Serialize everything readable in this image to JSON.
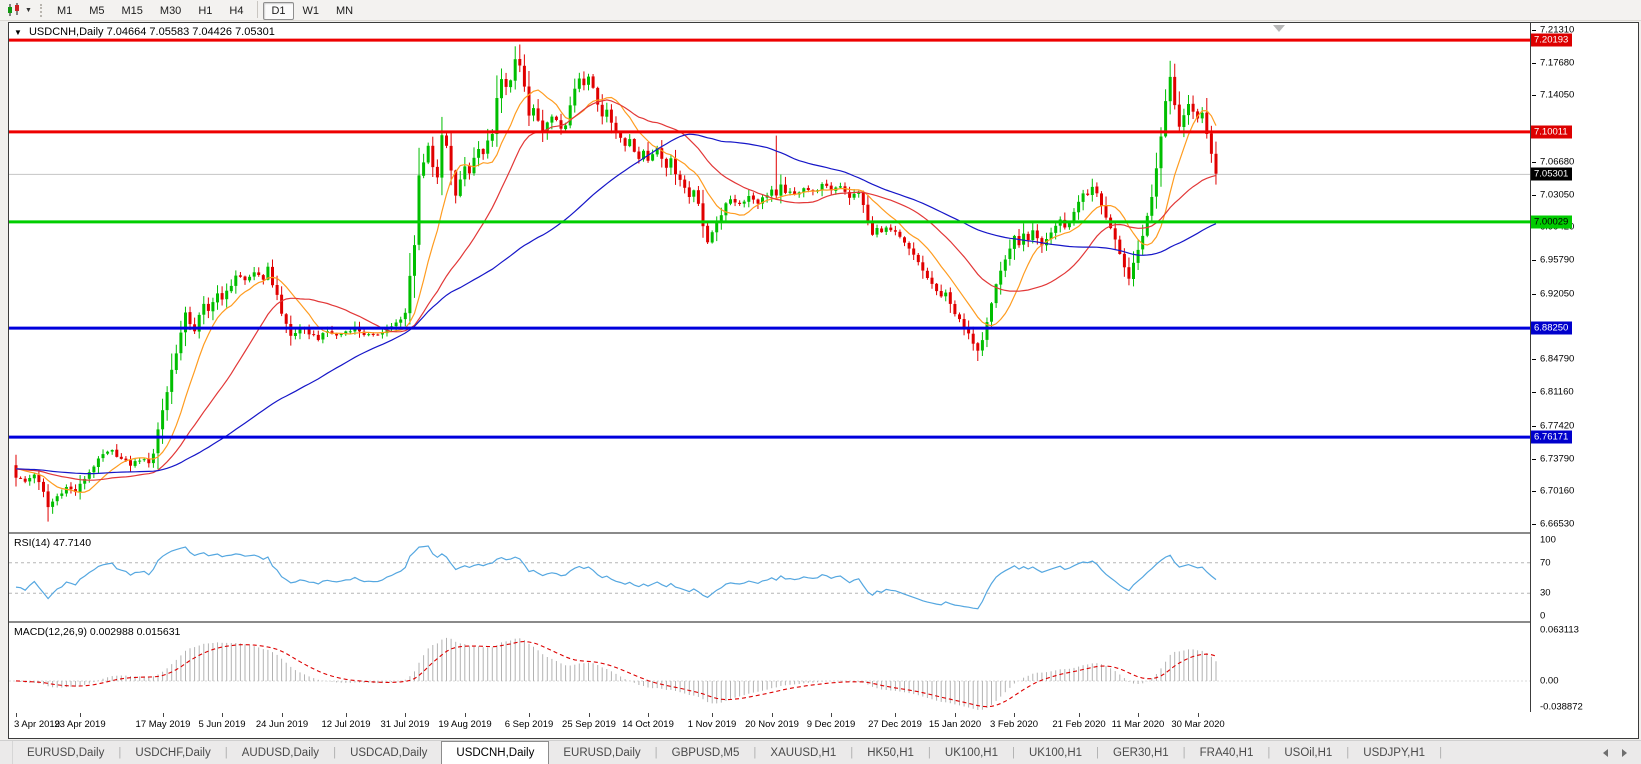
{
  "toolbar": {
    "timeframes": [
      "M1",
      "M5",
      "M15",
      "M30",
      "H1",
      "H4",
      "D1",
      "W1",
      "MN"
    ],
    "active_timeframe": "D1",
    "chart_tool_icon": "candlestick-chart-icon"
  },
  "chart": {
    "header": {
      "symbol": "USDCNH,Daily",
      "ohlc": "7.04664 7.05583 7.04426 7.05301",
      "open": "7.04664",
      "high": "7.05583",
      "low": "7.04426",
      "close": "7.05301"
    },
    "price_axis": {
      "ticks": [
        "7.21310",
        "7.17680",
        "7.14050",
        "7.06680",
        "7.03050",
        "6.99420",
        "6.95790",
        "6.92050",
        "6.84790",
        "6.81160",
        "6.77420",
        "6.73790",
        "6.70160",
        "6.66530"
      ],
      "badges": [
        {
          "value": "7.20193",
          "price": 7.20193,
          "bg": "#dd0000",
          "fg": "#ffffff"
        },
        {
          "value": "7.10011",
          "price": 7.10011,
          "bg": "#dd0000",
          "fg": "#ffffff"
        },
        {
          "value": "7.05301",
          "price": 7.05301,
          "bg": "#000000",
          "fg": "#ffffff"
        },
        {
          "value": "7.00029",
          "price": 7.00029,
          "bg": "#00cc00",
          "fg": "#000000"
        },
        {
          "value": "6.88250",
          "price": 6.8825,
          "bg": "#0000cc",
          "fg": "#ffffff"
        },
        {
          "value": "6.76171",
          "price": 6.76171,
          "bg": "#0000cc",
          "fg": "#ffffff"
        }
      ]
    },
    "hlines": [
      {
        "price": 7.20193,
        "color": "#ee0000",
        "width": 3
      },
      {
        "price": 7.10011,
        "color": "#ee0000",
        "width": 3
      },
      {
        "price": 7.05301,
        "color": "#c4c4c4",
        "width": 1
      },
      {
        "price": 7.00029,
        "color": "#00ce00",
        "width": 3
      },
      {
        "price": 6.8825,
        "color": "#0000dd",
        "width": 3
      },
      {
        "price": 6.76171,
        "color": "#0000dd",
        "width": 3
      }
    ]
  },
  "chart_data": {
    "type": "candlestick",
    "symbol": "USDCNH",
    "timeframe": "Daily",
    "price_range": [
      6.6653,
      7.2131
    ],
    "num_candles": 263,
    "candle_up_color": "#00be00",
    "candle_down_color": "#e00000",
    "moving_averages": [
      {
        "name": "ma-fast",
        "period": 10,
        "color": "#ff9c20"
      },
      {
        "name": "ma-mid",
        "period": 25,
        "color": "#e23838"
      },
      {
        "name": "ma-slow",
        "period": 60,
        "color": "#1616c8"
      }
    ],
    "close_anchors": [
      [
        0,
        6.718
      ],
      [
        2,
        6.712
      ],
      [
        4,
        6.721
      ],
      [
        6,
        6.7
      ],
      [
        7,
        6.684
      ],
      [
        9,
        6.696
      ],
      [
        11,
        6.706
      ],
      [
        13,
        6.701
      ],
      [
        15,
        6.716
      ],
      [
        17,
        6.73
      ],
      [
        19,
        6.742
      ],
      [
        21,
        6.746
      ],
      [
        23,
        6.737
      ],
      [
        25,
        6.731
      ],
      [
        27,
        6.737
      ],
      [
        29,
        6.734
      ],
      [
        30,
        6.744
      ],
      [
        31,
        6.77
      ],
      [
        32,
        6.792
      ],
      [
        33,
        6.812
      ],
      [
        34,
        6.836
      ],
      [
        35,
        6.856
      ],
      [
        36,
        6.877
      ],
      [
        37,
        6.898
      ],
      [
        38,
        6.888
      ],
      [
        39,
        6.88
      ],
      [
        40,
        6.896
      ],
      [
        41,
        6.908
      ],
      [
        42,
        6.901
      ],
      [
        43,
        6.913
      ],
      [
        44,
        6.921
      ],
      [
        45,
        6.913
      ],
      [
        46,
        6.923
      ],
      [
        47,
        6.931
      ],
      [
        48,
        6.941
      ],
      [
        50,
        6.934
      ],
      [
        52,
        6.945
      ],
      [
        54,
        6.938
      ],
      [
        55,
        6.949
      ],
      [
        56,
        6.931
      ],
      [
        57,
        6.92
      ],
      [
        58,
        6.898
      ],
      [
        59,
        6.887
      ],
      [
        60,
        6.874
      ],
      [
        62,
        6.882
      ],
      [
        64,
        6.877
      ],
      [
        66,
        6.871
      ],
      [
        68,
        6.879
      ],
      [
        70,
        6.874
      ],
      [
        72,
        6.879
      ],
      [
        74,
        6.883
      ],
      [
        76,
        6.876
      ],
      [
        78,
        6.873
      ],
      [
        80,
        6.879
      ],
      [
        82,
        6.885
      ],
      [
        84,
        6.891
      ],
      [
        85,
        6.899
      ],
      [
        86,
        6.94
      ],
      [
        87,
        6.976
      ],
      [
        88,
        7.052
      ],
      [
        89,
        7.066
      ],
      [
        90,
        7.086
      ],
      [
        91,
        7.062
      ],
      [
        92,
        7.048
      ],
      [
        93,
        7.096
      ],
      [
        94,
        7.084
      ],
      [
        95,
        7.056
      ],
      [
        96,
        7.03
      ],
      [
        97,
        7.046
      ],
      [
        98,
        7.062
      ],
      [
        99,
        7.055
      ],
      [
        100,
        7.071
      ],
      [
        101,
        7.083
      ],
      [
        102,
        7.076
      ],
      [
        103,
        7.089
      ],
      [
        104,
        7.099
      ],
      [
        105,
        7.136
      ],
      [
        106,
        7.158
      ],
      [
        107,
        7.149
      ],
      [
        108,
        7.159
      ],
      [
        109,
        7.18
      ],
      [
        110,
        7.172
      ],
      [
        111,
        7.15
      ],
      [
        112,
        7.118
      ],
      [
        113,
        7.126
      ],
      [
        114,
        7.112
      ],
      [
        115,
        7.098
      ],
      [
        116,
        7.109
      ],
      [
        117,
        7.119
      ],
      [
        118,
        7.112
      ],
      [
        119,
        7.102
      ],
      [
        120,
        7.108
      ],
      [
        121,
        7.131
      ],
      [
        122,
        7.146
      ],
      [
        123,
        7.159
      ],
      [
        124,
        7.151
      ],
      [
        125,
        7.161
      ],
      [
        126,
        7.148
      ],
      [
        127,
        7.13
      ],
      [
        128,
        7.118
      ],
      [
        129,
        7.126
      ],
      [
        130,
        7.112
      ],
      [
        131,
        7.1
      ],
      [
        132,
        7.092
      ],
      [
        133,
        7.085
      ],
      [
        134,
        7.093
      ],
      [
        135,
        7.08
      ],
      [
        136,
        7.072
      ],
      [
        137,
        7.079
      ],
      [
        138,
        7.068
      ],
      [
        139,
        7.076
      ],
      [
        140,
        7.083
      ],
      [
        141,
        7.072
      ],
      [
        142,
        7.062
      ],
      [
        143,
        7.069
      ],
      [
        144,
        7.055
      ],
      [
        145,
        7.048
      ],
      [
        146,
        7.038
      ],
      [
        147,
        7.028
      ],
      [
        148,
        7.036
      ],
      [
        149,
        7.022
      ],
      [
        150,
        6.996
      ],
      [
        151,
        6.976
      ],
      [
        152,
        6.989
      ],
      [
        153,
        7.001
      ],
      [
        154,
        7.009
      ],
      [
        155,
        7.019
      ],
      [
        156,
        7.026
      ],
      [
        158,
        7.02
      ],
      [
        160,
        7.029
      ],
      [
        162,
        7.022
      ],
      [
        164,
        7.031
      ],
      [
        165,
        7.036
      ],
      [
        166,
        7.028
      ],
      [
        167,
        7.04
      ],
      [
        168,
        7.034
      ],
      [
        170,
        7.03
      ],
      [
        172,
        7.039
      ],
      [
        174,
        7.033
      ],
      [
        176,
        7.041
      ],
      [
        178,
        7.036
      ],
      [
        180,
        7.041
      ],
      [
        182,
        7.028
      ],
      [
        184,
        7.033
      ],
      [
        185,
        7.02
      ],
      [
        186,
        6.998
      ],
      [
        187,
        6.986
      ],
      [
        188,
        6.993
      ],
      [
        189,
        6.988
      ],
      [
        190,
        6.996
      ],
      [
        191,
        6.99
      ],
      [
        192,
        6.989
      ],
      [
        193,
        6.982
      ],
      [
        194,
        6.976
      ],
      [
        196,
        6.963
      ],
      [
        198,
        6.946
      ],
      [
        200,
        6.931
      ],
      [
        202,
        6.916
      ],
      [
        203,
        6.921
      ],
      [
        204,
        6.911
      ],
      [
        205,
        6.899
      ],
      [
        206,
        6.891
      ],
      [
        207,
        6.883
      ],
      [
        208,
        6.875
      ],
      [
        209,
        6.867
      ],
      [
        210,
        6.859
      ],
      [
        211,
        6.871
      ],
      [
        212,
        6.891
      ],
      [
        213,
        6.911
      ],
      [
        214,
        6.931
      ],
      [
        215,
        6.946
      ],
      [
        216,
        6.959
      ],
      [
        217,
        6.971
      ],
      [
        218,
        6.983
      ],
      [
        219,
        6.976
      ],
      [
        220,
        6.986
      ],
      [
        221,
        6.979
      ],
      [
        222,
        6.989
      ],
      [
        223,
        6.981
      ],
      [
        224,
        6.973
      ],
      [
        225,
        6.981
      ],
      [
        226,
        6.989
      ],
      [
        227,
        6.996
      ],
      [
        228,
        7.003
      ],
      [
        229,
        6.993
      ],
      [
        230,
        7.001
      ],
      [
        231,
        7.011
      ],
      [
        232,
        7.023
      ],
      [
        233,
        7.033
      ],
      [
        234,
        7.029
      ],
      [
        235,
        7.039
      ],
      [
        236,
        7.031
      ],
      [
        237,
        7.019
      ],
      [
        238,
        7.006
      ],
      [
        239,
        6.993
      ],
      [
        240,
        6.979
      ],
      [
        241,
        6.963
      ],
      [
        242,
        6.949
      ],
      [
        243,
        6.939
      ],
      [
        244,
        6.953
      ],
      [
        245,
        6.969
      ],
      [
        246,
        6.986
      ],
      [
        247,
        7.006
      ],
      [
        248,
        7.029
      ],
      [
        249,
        7.061
      ],
      [
        250,
        7.096
      ],
      [
        251,
        7.136
      ],
      [
        252,
        7.161
      ],
      [
        253,
        7.131
      ],
      [
        254,
        7.106
      ],
      [
        255,
        7.119
      ],
      [
        256,
        7.133
      ],
      [
        257,
        7.123
      ],
      [
        258,
        7.113
      ],
      [
        259,
        7.121
      ],
      [
        260,
        7.099
      ],
      [
        261,
        7.076
      ],
      [
        262,
        7.053
      ]
    ],
    "extra_wicks": [
      {
        "day": 7,
        "low": 6.668
      },
      {
        "day": 88,
        "low": 6.982
      },
      {
        "day": 110,
        "high": 7.197
      },
      {
        "day": 166,
        "high": 7.096
      },
      {
        "day": 210,
        "low": 6.846
      },
      {
        "day": 252,
        "high": 7.179
      }
    ],
    "date_labels": [
      {
        "label": "3 Apr 2019",
        "day": 0
      },
      {
        "label": "23 Apr 2019",
        "day": 14
      },
      {
        "label": "17 May 2019",
        "day": 32
      },
      {
        "label": "5 Jun 2019",
        "day": 45
      },
      {
        "label": "24 Jun 2019",
        "day": 58
      },
      {
        "label": "12 Jul 2019",
        "day": 72
      },
      {
        "label": "31 Jul 2019",
        "day": 85
      },
      {
        "label": "19 Aug 2019",
        "day": 98
      },
      {
        "label": "6 Sep 2019",
        "day": 112
      },
      {
        "label": "25 Sep 2019",
        "day": 125
      },
      {
        "label": "14 Oct 2019",
        "day": 138
      },
      {
        "label": "1 Nov 2019",
        "day": 152
      },
      {
        "label": "20 Nov 2019",
        "day": 165
      },
      {
        "label": "9 Dec 2019",
        "day": 178
      },
      {
        "label": "27 Dec 2019",
        "day": 192
      },
      {
        "label": "15 Jan 2020",
        "day": 205
      },
      {
        "label": "3 Feb 2020",
        "day": 218
      },
      {
        "label": "21 Feb 2020",
        "day": 232
      },
      {
        "label": "11 Mar 2020",
        "day": 245
      },
      {
        "label": "30 Mar 2020",
        "day": 258
      }
    ]
  },
  "rsi": {
    "title": "RSI(14)",
    "value": "47.7140",
    "period": 14,
    "levels": [
      100,
      70,
      30,
      0
    ],
    "line_color": "#55a7e0"
  },
  "macd": {
    "title": "MACD(12,26,9)",
    "values": "0.002988 0.015631",
    "fast": 12,
    "slow": 26,
    "signal": 9,
    "axis_max": "0.063113",
    "axis_zero": "0.00",
    "axis_min": "-0.038872",
    "hist_color": "#b2b2b2",
    "signal_color": "#dd0000"
  },
  "tabs": {
    "items": [
      "EURUSD,Daily",
      "USDCHF,Daily",
      "AUDUSD,Daily",
      "USDCAD,Daily",
      "USDCNH,Daily",
      "EURUSD,Daily",
      "GBPUSD,M5",
      "XAUUSD,H1",
      "HK50,H1",
      "UK100,H1",
      "UK100,H1",
      "GER30,H1",
      "FRA40,H1",
      "USOil,H1",
      "USDJPY,H1"
    ],
    "active_index": 4
  }
}
